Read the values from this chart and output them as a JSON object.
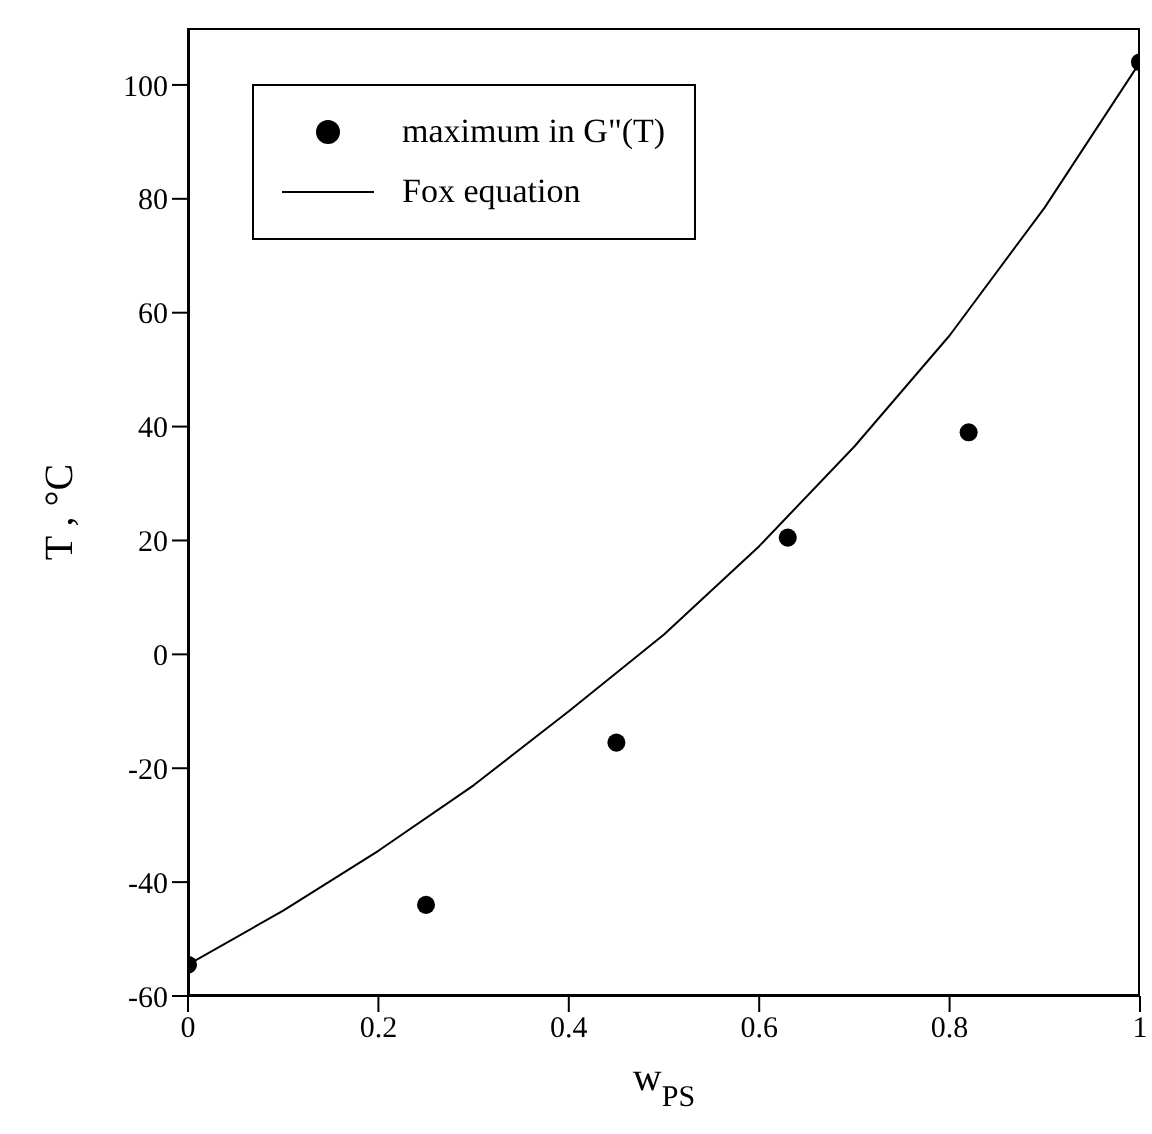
{
  "chart_data": {
    "type": "scatter",
    "xlabel": "w$_{PS}$",
    "ylabel": "T , °C",
    "xlim": [
      0,
      1
    ],
    "xticks": [
      0,
      0.2,
      0.4,
      0.6,
      0.8,
      1
    ],
    "ylim": [
      -60,
      110
    ],
    "yticks": [
      -60,
      -40,
      -20,
      0,
      20,
      40,
      60,
      80,
      100
    ],
    "legend": "top left",
    "marker": "circle",
    "series": [
      {
        "name": "maximum in G\"(T)",
        "color": "#000000",
        "x": [
          0,
          0.25,
          0.45,
          0.63,
          0.82,
          1
        ],
        "values": [
          -54.5,
          -44,
          -15.5,
          20.5,
          39,
          104
        ]
      },
      {
        "name": "Fox equation",
        "type": "line",
        "color": "#000000",
        "marker": "none",
        "line_style": "solid",
        "x": [
          0,
          0.1,
          0.2,
          0.3,
          0.4,
          0.5,
          0.6,
          0.7,
          0.8,
          0.9,
          1
        ],
        "values": [
          -54.5,
          -45,
          -34.5,
          -23,
          -10,
          3.5,
          19,
          36.5,
          56,
          78.5,
          104
        ]
      }
    ]
  }
}
